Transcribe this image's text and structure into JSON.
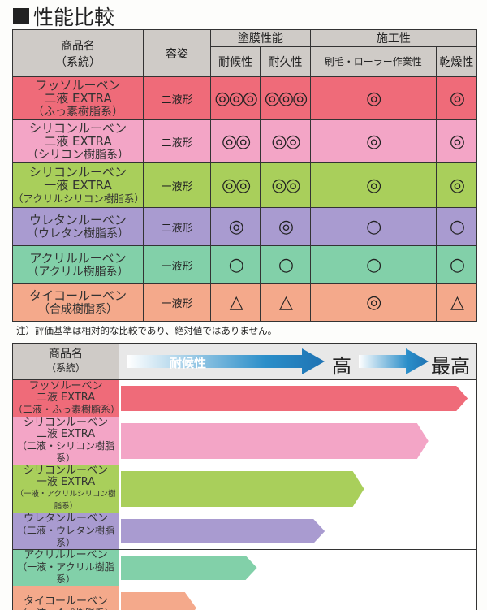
{
  "title": "性能比較",
  "table1": {
    "headers": {
      "name": "商品名",
      "name_sub": "（系統）",
      "form": "容姿",
      "group_film": "塗膜性能",
      "group_work": "施工性",
      "weather": "耐候性",
      "durability": "耐久性",
      "brush": "刷毛・ローラー作業性",
      "drying": "乾燥性"
    },
    "rows": [
      {
        "name": "フッソルーベン",
        "name2": "二液 EXTRA",
        "type": "（ふっ素樹脂系）",
        "form": "二液形",
        "weather": "◎◎◎",
        "durability": "◎◎◎",
        "brush": "◎",
        "drying": "◎",
        "color": "#ef6b79"
      },
      {
        "name": "シリコンルーベン",
        "name2": "二液 EXTRA",
        "type": "（シリコン樹脂系）",
        "form": "二液形",
        "weather": "◎◎",
        "durability": "◎◎",
        "brush": "◎",
        "drying": "◎",
        "color": "#f3a5c6"
      },
      {
        "name": "シリコンルーベン",
        "name2": "一液 EXTRA",
        "type": "（アクリルシリコン樹脂系）",
        "form": "一液形",
        "weather": "◎◎",
        "durability": "◎◎",
        "brush": "◎",
        "drying": "◎",
        "color": "#a9cf5b"
      },
      {
        "name": "ウレタンルーベン",
        "name2": "",
        "type": "（ウレタン樹脂系）",
        "form": "二液形",
        "weather": "◎",
        "durability": "◎",
        "brush": "○",
        "drying": "○",
        "color": "#a99bd0"
      },
      {
        "name": "アクリルルーベン",
        "name2": "",
        "type": "（アクリル樹脂系）",
        "form": "一液形",
        "weather": "○",
        "durability": "○",
        "brush": "○",
        "drying": "○",
        "color": "#82d0a9"
      },
      {
        "name": "タイコールーベン",
        "name2": "",
        "type": "（合成樹脂系）",
        "form": "一液形",
        "weather": "△",
        "durability": "△",
        "brush": "◎",
        "drying": "△",
        "color": "#f4a98b"
      }
    ],
    "note": "注）評価基準は相対的な比較であり、絶対値ではありません。"
  },
  "chart_data": {
    "type": "bar",
    "header": {
      "name": "商品名",
      "name_sub": "（系統）",
      "axis_label": "耐候性",
      "mark_high": "高",
      "mark_highest": "最高"
    },
    "categories": [
      {
        "name": "フッソルーベン",
        "name2": "二液 EXTRA",
        "type": "（二液・ふっ素樹脂系）",
        "color": "#ef6b79"
      },
      {
        "name": "シリコンルーベン",
        "name2": "二液 EXTRA",
        "type": "（二液・シリコン樹脂系）",
        "color": "#f3a5c6"
      },
      {
        "name": "シリコンルーベン",
        "name2": "一液 EXTRA",
        "type": "（一液・アクリルシリコン樹脂系）",
        "color": "#a9cf5b"
      },
      {
        "name": "ウレタンルーベン",
        "name2": "",
        "type": "（二液・ウレタン樹脂系）",
        "color": "#a99bd0"
      },
      {
        "name": "アクリルルーベン",
        "name2": "",
        "type": "（一液・アクリル樹脂系）",
        "color": "#82d0a9"
      },
      {
        "name": "タイコールーベン",
        "name2": "",
        "type": "（一液・合成樹脂系）",
        "color": "#f4a98b"
      }
    ],
    "values": [
      0.98,
      0.87,
      0.69,
      0.58,
      0.39,
      0.22
    ]
  }
}
